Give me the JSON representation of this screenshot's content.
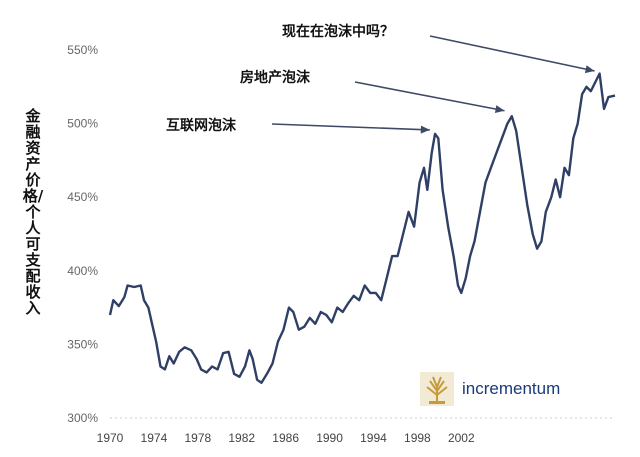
{
  "chart_data": {
    "type": "line",
    "title": "",
    "ylabel": "金融资产价格/个人可支配收入",
    "xlabel": "",
    "ylim": [
      300,
      550
    ],
    "xlim": [
      1970,
      2016
    ],
    "yticks": [
      300,
      350,
      400,
      450,
      500,
      550
    ],
    "ytick_labels": [
      "300%",
      "350%",
      "400%",
      "450%",
      "500%",
      "550%"
    ],
    "xticks": [
      1970,
      1974,
      1978,
      1982,
      1986,
      1990,
      1994,
      1998,
      2002
    ],
    "xtick_labels": [
      "1970",
      "1974",
      "1978",
      "1982",
      "1986",
      "1990",
      "1994",
      "1998",
      "2002"
    ],
    "grid": false,
    "series": [
      {
        "color": "#2f3f66",
        "points": [
          [
            1970.0,
            370
          ],
          [
            1970.3,
            380
          ],
          [
            1970.8,
            376
          ],
          [
            1971.3,
            382
          ],
          [
            1971.6,
            390
          ],
          [
            1972.2,
            389
          ],
          [
            1972.8,
            390
          ],
          [
            1973.1,
            380
          ],
          [
            1973.5,
            375
          ],
          [
            1973.8,
            365
          ],
          [
            1974.2,
            352
          ],
          [
            1974.6,
            335
          ],
          [
            1975.0,
            333
          ],
          [
            1975.4,
            342
          ],
          [
            1975.8,
            337
          ],
          [
            1976.3,
            345
          ],
          [
            1976.8,
            348
          ],
          [
            1977.4,
            346
          ],
          [
            1977.9,
            340
          ],
          [
            1978.3,
            333
          ],
          [
            1978.8,
            331
          ],
          [
            1979.3,
            335
          ],
          [
            1979.8,
            333
          ],
          [
            1980.3,
            344
          ],
          [
            1980.8,
            345
          ],
          [
            1981.3,
            330
          ],
          [
            1981.8,
            328
          ],
          [
            1982.3,
            335
          ],
          [
            1982.7,
            346
          ],
          [
            1983.0,
            340
          ],
          [
            1983.4,
            326
          ],
          [
            1983.8,
            324
          ],
          [
            1984.3,
            330
          ],
          [
            1984.8,
            337
          ],
          [
            1985.3,
            352
          ],
          [
            1985.8,
            360
          ],
          [
            1986.3,
            375
          ],
          [
            1986.7,
            372
          ],
          [
            1987.2,
            360
          ],
          [
            1987.7,
            362
          ],
          [
            1988.2,
            368
          ],
          [
            1988.7,
            364
          ],
          [
            1989.2,
            372
          ],
          [
            1989.7,
            370
          ],
          [
            1990.2,
            365
          ],
          [
            1990.7,
            375
          ],
          [
            1991.2,
            372
          ],
          [
            1991.7,
            378
          ],
          [
            1992.2,
            383
          ],
          [
            1992.7,
            380
          ],
          [
            1993.2,
            390
          ],
          [
            1993.7,
            385
          ],
          [
            1994.2,
            385
          ],
          [
            1994.7,
            380
          ],
          [
            1995.2,
            395
          ],
          [
            1995.7,
            410
          ],
          [
            1996.2,
            410
          ],
          [
            1996.7,
            425
          ],
          [
            1997.2,
            440
          ],
          [
            1997.7,
            430
          ],
          [
            1998.2,
            460
          ],
          [
            1998.6,
            470
          ],
          [
            1998.9,
            455
          ],
          [
            1999.3,
            480
          ],
          [
            1999.6,
            493
          ],
          [
            1999.9,
            490
          ],
          [
            2000.3,
            455
          ],
          [
            2000.8,
            430
          ],
          [
            2001.3,
            410
          ],
          [
            2001.7,
            390
          ],
          [
            2002.0,
            385
          ],
          [
            2002.4,
            395
          ],
          [
            2002.8,
            410
          ],
          [
            2003.2,
            420
          ],
          [
            2003.7,
            440
          ],
          [
            2004.2,
            460
          ],
          [
            2004.7,
            470
          ],
          [
            2005.2,
            480
          ],
          [
            2005.7,
            490
          ],
          [
            2006.2,
            500
          ],
          [
            2006.6,
            505
          ],
          [
            2007.0,
            495
          ],
          [
            2007.5,
            470
          ],
          [
            2008.0,
            445
          ],
          [
            2008.5,
            425
          ],
          [
            2008.9,
            415
          ],
          [
            2009.3,
            420
          ],
          [
            2009.7,
            440
          ],
          [
            2010.2,
            450
          ],
          [
            2010.6,
            462
          ],
          [
            2011.0,
            450
          ],
          [
            2011.4,
            470
          ],
          [
            2011.8,
            465
          ],
          [
            2012.2,
            490
          ],
          [
            2012.6,
            500
          ],
          [
            2013.0,
            520
          ],
          [
            2013.4,
            525
          ],
          [
            2013.8,
            522
          ],
          [
            2014.2,
            528
          ],
          [
            2014.6,
            534
          ],
          [
            2015.0,
            510
          ],
          [
            2015.4,
            518
          ],
          [
            2016.0,
            519
          ]
        ]
      }
    ],
    "annotations": [
      {
        "text": "现在在泡沫中吗？",
        "x": 2014.5,
        "y": 533
      },
      {
        "text": "房地产泡沫",
        "x": 2006.3,
        "y": 506
      },
      {
        "text": "互联网泡沫",
        "x": 1999.5,
        "y": 493
      }
    ]
  },
  "branding": {
    "logo_text": "incrementum",
    "logo_icon": "tree-icon",
    "logo_color": "#c69b3a"
  }
}
